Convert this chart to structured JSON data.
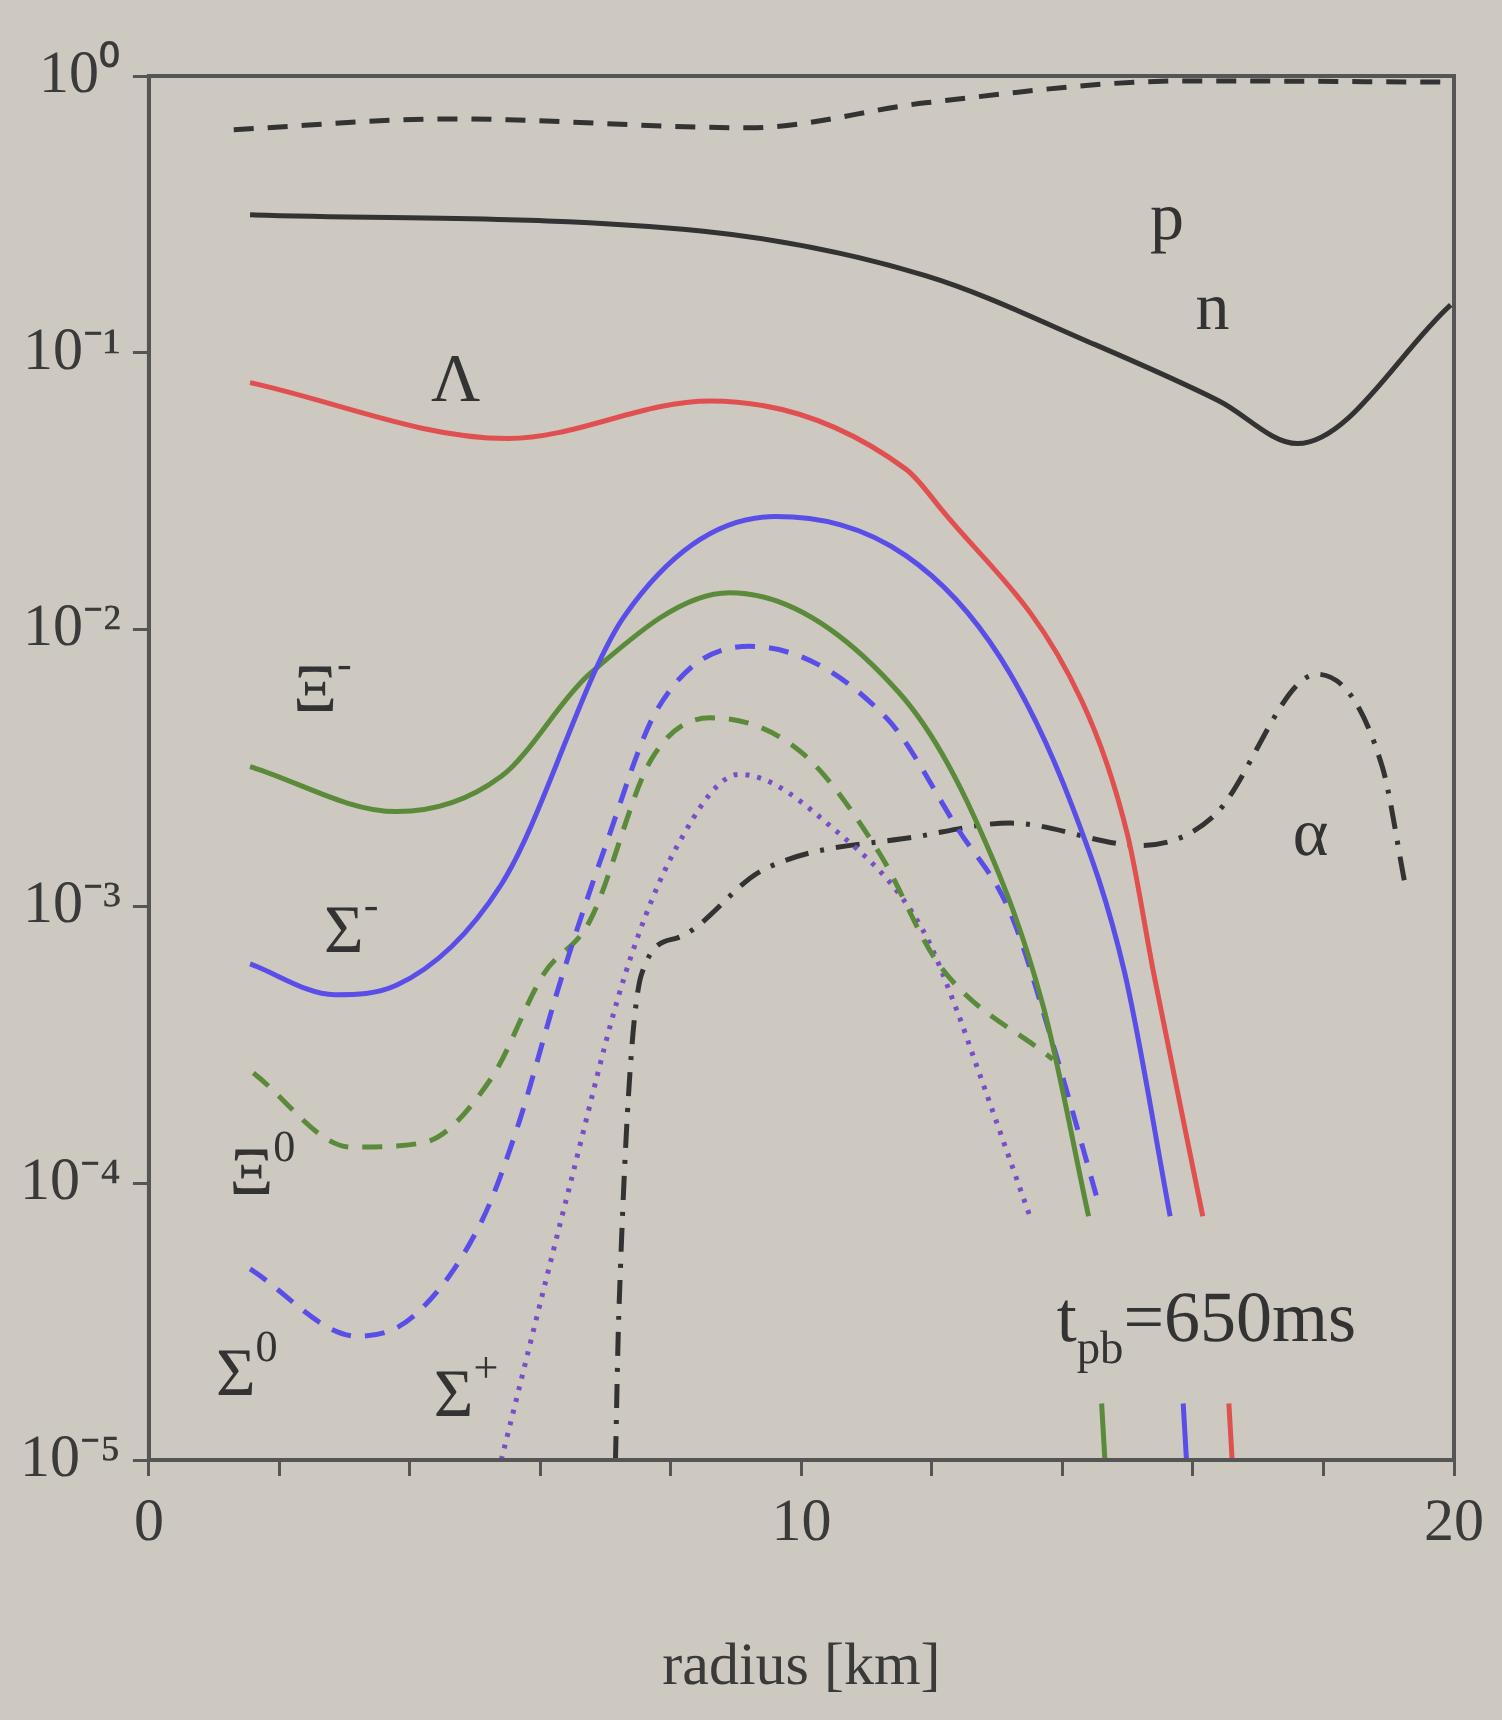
{
  "chart_data": {
    "type": "line",
    "xlabel": "radius [km]",
    "log": "y",
    "grid": false,
    "legend": false,
    "marker": "none",
    "xlim": [
      0,
      20
    ],
    "xticks": [
      0,
      {
        "value": 2,
        "label": null
      },
      {
        "value": 4,
        "label": null
      },
      {
        "value": 6,
        "label": null
      },
      {
        "value": 8,
        "label": null
      },
      10,
      {
        "value": 12,
        "label": null
      },
      {
        "value": 14,
        "label": null
      },
      {
        "value": 16,
        "label": null
      },
      {
        "value": 18,
        "label": null
      },
      20
    ],
    "ylim": [
      1e-05,
      1
    ],
    "yticks": [
      {
        "value": 1e-05,
        "label": "10⁻⁵"
      },
      {
        "value": 0.0001,
        "label": "10⁻⁴"
      },
      {
        "value": 0.001,
        "label": "10⁻³"
      },
      {
        "value": 0.01,
        "label": "10⁻²"
      },
      {
        "value": 0.1,
        "label": "10⁻¹"
      },
      {
        "value": 1,
        "label": "10⁰"
      }
    ],
    "series": [
      {
        "color": "#333333",
        "line_style": "dashed",
        "x": [
          1.3,
          4.6,
          9.2,
          11.9,
          15.9,
          20
        ],
        "values": [
          0.64,
          0.7,
          0.65,
          0.8,
          0.96,
          0.95
        ]
      },
      {
        "color": "#333333",
        "line_style": "solid",
        "x": [
          1.55,
          8.5,
          11.9,
          14.5,
          16.4,
          17.6,
          19.95
        ],
        "values": [
          0.315,
          0.275,
          0.19,
          0.107,
          0.067,
          0.047,
          0.149
        ]
      },
      {
        "color": "#e05050",
        "line_style": "solid",
        "x": [
          1.55,
          5.5,
          8.6,
          11.6,
          12.1,
          14.3,
          15,
          15.4,
          16.15,
          null,
          16.55,
          16.6
        ],
        "values": [
          0.078,
          0.049,
          0.067,
          0.038,
          0.028,
          0.0055,
          0.0018,
          0.00057,
          7.6e-05,
          null,
          1.6e-05,
          1e-05
        ]
      },
      {
        "color": "#5a4ee8",
        "line_style": "solid",
        "x": [
          1.55,
          2.85,
          3.8,
          5.4,
          7.3,
          9.6,
          11.6,
          13.05,
          14.15,
          14.95,
          15.65,
          null,
          15.85,
          15.9
        ],
        "values": [
          0.00062,
          0.00048,
          0.00052,
          0.0012,
          0.0113,
          0.0256,
          0.0185,
          0.0079,
          0.0023,
          0.00058,
          7.6e-05,
          null,
          1.6e-05,
          1e-05
        ]
      },
      {
        "color": "#5a8a3a",
        "line_style": "solid",
        "x": [
          1.55,
          3.8,
          5.4,
          6.75,
          8.9,
          11.5,
          12.65,
          13.7,
          14.4,
          null,
          14.6,
          14.65
        ],
        "values": [
          0.0032,
          0.0022,
          0.00295,
          0.0069,
          0.0136,
          0.0059,
          0.0021,
          0.00044,
          7.6e-05,
          null,
          1.6e-05,
          1e-05
        ]
      },
      {
        "color": "#5a4ee8",
        "line_style": "dashed",
        "x": [
          1.55,
          3.2,
          4.05,
          5.1,
          5.65,
          6.3,
          7,
          7.8,
          9.2,
          11.3,
          12.4,
          13.2,
          13.85,
          14.55
        ],
        "values": [
          4.9e-05,
          2.8e-05,
          3.3e-05,
          7.3e-05,
          0.00016,
          0.00053,
          0.00166,
          0.0052,
          0.0087,
          0.0048,
          0.0019,
          0.00095,
          0.00032,
          8.5e-05
        ]
      },
      {
        "color": "#5a8a3a",
        "line_style": "dashed",
        "x": [
          1.6,
          3.1,
          4.2,
          5.25,
          6.05,
          6.75,
          7.7,
          8.6,
          10,
          11.2,
          12.1,
          13.85
        ],
        "values": [
          0.00025,
          0.000135,
          0.00014,
          0.00024,
          0.00057,
          0.00088,
          0.0034,
          0.0048,
          0.0036,
          0.00155,
          0.00062,
          0.00028
        ]
      },
      {
        "color": "#7a4ec8",
        "line_style": "dotted",
        "x": [
          5.4,
          6.45,
          7.3,
          8.1,
          9.05,
          10.5,
          11.85,
          12.4,
          12.65,
          13.5
        ],
        "values": [
          1e-05,
          9.8e-05,
          0.00057,
          0.00166,
          0.003,
          0.0019,
          0.00083,
          0.00041,
          0.00028,
          7.6e-05
        ]
      },
      {
        "color": "#333333",
        "line_style": "dashdot",
        "x": [
          7.15,
          7.2,
          7.55,
          8.1,
          9.4,
          11.85,
          13.2,
          15.2,
          16.3,
          17.9,
          18.9,
          19.25
        ],
        "values": [
          1e-05,
          3.3e-05,
          0.00057,
          0.00077,
          0.00135,
          0.0018,
          0.002,
          0.00166,
          0.0021,
          0.0069,
          0.0032,
          0.0012
        ]
      }
    ],
    "annotations": [
      "p",
      "n",
      "Λ",
      "Ξ$^{-}$",
      "Σ$^{-}$",
      "Ξ$^{0}$",
      "Σ$^{0}$",
      "Σ$^{+}$",
      "α",
      "t$_{pb}$=650ms"
    ]
  }
}
